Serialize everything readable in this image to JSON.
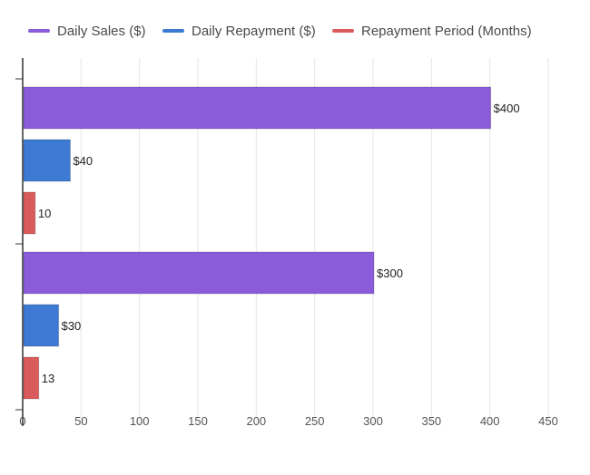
{
  "chart_data": {
    "type": "bar",
    "orientation": "horizontal",
    "title": "",
    "xlabel": "",
    "ylabel": "",
    "categories": [
      "",
      ""
    ],
    "xlim": [
      0,
      450
    ],
    "x_ticks": [
      "0",
      "50",
      "100",
      "150",
      "200",
      "250",
      "300",
      "350",
      "400",
      "450"
    ],
    "grid": true,
    "legend_position": "top-left",
    "series": [
      {
        "name": "Daily Sales ($)",
        "color": "#8a5cdc",
        "values": [
          400,
          300
        ],
        "labels": [
          "$400",
          "$300"
        ]
      },
      {
        "name": "Daily Repayment ($)",
        "color": "#3c7ad3",
        "values": [
          40,
          30
        ],
        "labels": [
          "$40",
          "$30"
        ]
      },
      {
        "name": "Repayment Period (Months)",
        "color": "#d95b5b",
        "values": [
          10,
          13
        ],
        "labels": [
          "10",
          "13"
        ]
      }
    ]
  }
}
